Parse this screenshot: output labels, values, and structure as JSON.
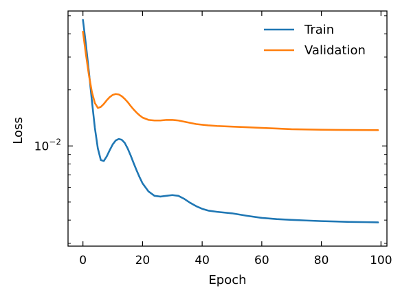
{
  "chart_data": {
    "type": "line",
    "xlabel": "Epoch",
    "ylabel": "Loss",
    "xlim": [
      -5,
      102
    ],
    "ylim": [
      0.0029,
      0.053
    ],
    "yscale": "log",
    "legend_position": "top-right",
    "x_ticks": [
      0,
      20,
      40,
      60,
      80,
      100
    ],
    "x_tick_labels": [
      "0",
      "20",
      "40",
      "60",
      "80",
      "100"
    ],
    "y_major_ticks": [
      0.01
    ],
    "y_major_base": "10",
    "y_major_exponent": "−2",
    "y_minor_ticks": [
      0.003,
      0.004,
      0.005,
      0.006,
      0.007,
      0.008,
      0.009,
      0.02,
      0.03,
      0.04,
      0.05
    ],
    "series": [
      {
        "name": "Train",
        "color": "#1f77b4",
        "x": [
          0,
          1,
          2,
          3,
          4,
          5,
          6,
          7,
          8,
          9,
          10,
          11,
          12,
          13,
          14,
          15,
          16,
          17,
          18,
          19,
          20,
          22,
          24,
          26,
          28,
          30,
          32,
          34,
          36,
          38,
          40,
          42,
          45,
          50,
          55,
          60,
          65,
          70,
          75,
          80,
          85,
          90,
          95,
          99
        ],
        "y": [
          0.0475,
          0.035,
          0.025,
          0.0175,
          0.0125,
          0.0097,
          0.0084,
          0.0083,
          0.0088,
          0.0095,
          0.0102,
          0.0107,
          0.0109,
          0.0108,
          0.0104,
          0.0097,
          0.0089,
          0.0081,
          0.0074,
          0.0068,
          0.0063,
          0.0057,
          0.0054,
          0.00535,
          0.0054,
          0.00545,
          0.0054,
          0.0052,
          0.00495,
          0.00475,
          0.0046,
          0.0045,
          0.00443,
          0.00435,
          0.00422,
          0.00411,
          0.00405,
          0.00401,
          0.00398,
          0.00395,
          0.00393,
          0.00391,
          0.0039,
          0.00389
        ]
      },
      {
        "name": "Validation",
        "color": "#ff7f0e",
        "x": [
          0,
          1,
          2,
          3,
          4,
          5,
          6,
          7,
          8,
          9,
          10,
          11,
          12,
          13,
          14,
          15,
          16,
          17,
          18,
          19,
          20,
          22,
          24,
          26,
          28,
          30,
          32,
          34,
          36,
          38,
          40,
          42,
          45,
          50,
          55,
          60,
          65,
          70,
          75,
          80,
          85,
          90,
          95,
          99
        ],
        "y": [
          0.041,
          0.031,
          0.024,
          0.0195,
          0.017,
          0.016,
          0.0162,
          0.0168,
          0.0176,
          0.0183,
          0.0188,
          0.019,
          0.0189,
          0.0185,
          0.0179,
          0.0172,
          0.0164,
          0.0157,
          0.0151,
          0.0146,
          0.0142,
          0.0138,
          0.0137,
          0.0137,
          0.0138,
          0.0138,
          0.0137,
          0.0135,
          0.0133,
          0.0131,
          0.013,
          0.0129,
          0.0128,
          0.0127,
          0.0126,
          0.0125,
          0.0124,
          0.0123,
          0.01226,
          0.01222,
          0.0122,
          0.01218,
          0.01217,
          0.01216
        ]
      }
    ]
  }
}
